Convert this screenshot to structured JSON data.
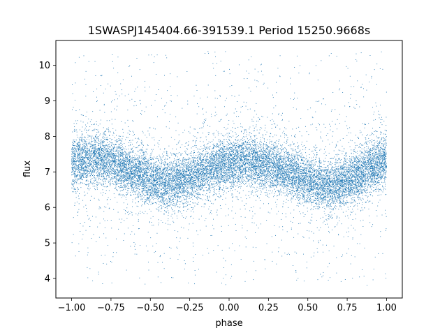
{
  "chart_data": {
    "type": "scatter",
    "title": "1SWASPJ145404.66-391539.1 Period 15250.9668s",
    "xlabel": "phase",
    "ylabel": "flux",
    "xlim": [
      -1.1,
      1.1
    ],
    "ylim": [
      3.45,
      10.7
    ],
    "xticks": [
      -1.0,
      -0.75,
      -0.5,
      -0.25,
      0.0,
      0.25,
      0.5,
      0.75,
      1.0
    ],
    "xtick_labels": [
      "−1.00",
      "−0.75",
      "−0.50",
      "−0.25",
      "0.00",
      "0.25",
      "0.50",
      "0.75",
      "1.00"
    ],
    "yticks": [
      4,
      5,
      6,
      7,
      8,
      9,
      10
    ],
    "ytick_labels": [
      "4",
      "5",
      "6",
      "7",
      "8",
      "9",
      "10"
    ],
    "grid": false,
    "marker_color": "#1f77b4",
    "phase_range": [
      -1.0,
      1.0
    ],
    "trend": {
      "x": [
        -1.0,
        -0.85,
        -0.75,
        -0.6,
        -0.5,
        -0.4,
        -0.3,
        -0.2,
        -0.1,
        0.0,
        0.1,
        0.15,
        0.25,
        0.4,
        0.5,
        0.6,
        0.65,
        0.75,
        0.85,
        0.9,
        1.0
      ],
      "y": [
        7.25,
        7.4,
        7.3,
        7.0,
        6.75,
        6.65,
        6.75,
        6.95,
        7.15,
        7.25,
        7.3,
        7.3,
        7.2,
        6.95,
        6.75,
        6.6,
        6.6,
        6.75,
        7.0,
        7.15,
        7.3
      ]
    },
    "core_spread": 0.35,
    "outlier_range": [
      3.8,
      10.4
    ]
  }
}
